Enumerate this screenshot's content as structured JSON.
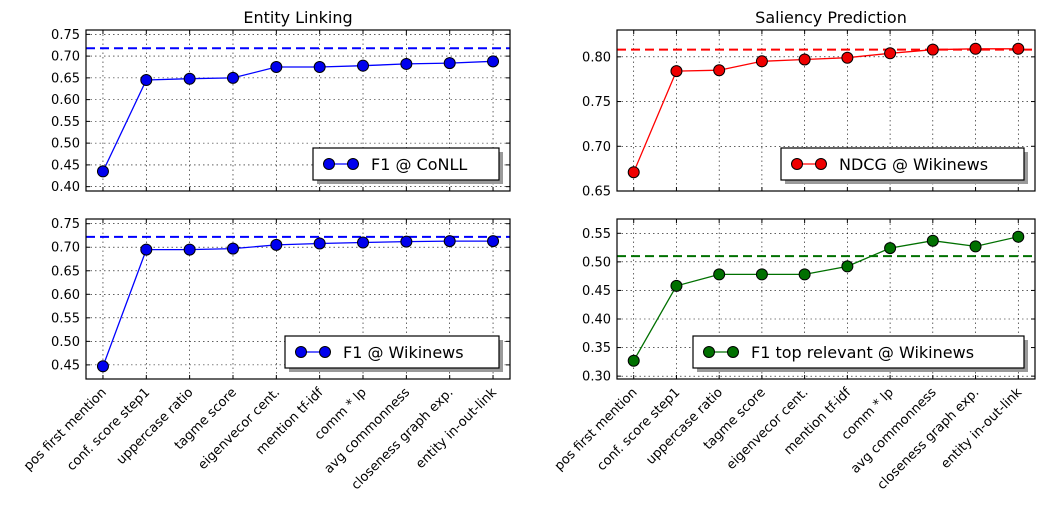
{
  "categories": [
    "pos first mention",
    "conf. score step1",
    "uppercase ratio",
    "tagme score",
    "eigenvecor cent.",
    "mention tf-idf",
    "comm * lp",
    "avg commonness",
    "closeness graph exp.",
    "entity in-out-link"
  ],
  "titles": {
    "left": "Entity Linking",
    "right": "Saliency Prediction"
  },
  "chart_data": [
    {
      "type": "line",
      "panel": "top-left",
      "title": "Entity Linking",
      "legend": "F1 @ CoNLL",
      "color": "#0000ff",
      "marker_color": "#0000ee",
      "values": [
        0.435,
        0.645,
        0.648,
        0.65,
        0.675,
        0.675,
        0.678,
        0.682,
        0.684,
        0.688
      ],
      "baseline": 0.718,
      "ylim": [
        0.39,
        0.76
      ],
      "yticks": [
        "0.40",
        "0.45",
        "0.50",
        "0.55",
        "0.60",
        "0.65",
        "0.70",
        "0.75"
      ],
      "grid": true,
      "legend_loc": "lower-right"
    },
    {
      "type": "line",
      "panel": "bottom-left",
      "legend": "F1 @ Wikinews",
      "color": "#0000ff",
      "marker_color": "#0000ee",
      "values": [
        0.447,
        0.695,
        0.695,
        0.697,
        0.705,
        0.708,
        0.71,
        0.712,
        0.713,
        0.713
      ],
      "baseline": 0.722,
      "ylim": [
        0.42,
        0.76
      ],
      "yticks": [
        "0.45",
        "0.50",
        "0.55",
        "0.60",
        "0.65",
        "0.70",
        "0.75"
      ],
      "grid": true,
      "legend_loc": "lower-right"
    },
    {
      "type": "line",
      "panel": "top-right",
      "title": "Saliency Prediction",
      "legend": "NDCG @ Wikinews",
      "color": "#ff0000",
      "marker_color": "#ee0000",
      "values": [
        0.671,
        0.784,
        0.785,
        0.795,
        0.797,
        0.799,
        0.804,
        0.808,
        0.809,
        0.809
      ],
      "baseline": 0.808,
      "ylim": [
        0.65,
        0.83
      ],
      "yticks": [
        "0.65",
        "0.70",
        "0.75",
        "0.80"
      ],
      "grid": true,
      "legend_loc": "lower-right"
    },
    {
      "type": "line",
      "panel": "bottom-right",
      "legend": "F1 top relevant @ Wikinews",
      "color": "#007000",
      "marker_color": "#007000",
      "values": [
        0.327,
        0.458,
        0.478,
        0.478,
        0.478,
        0.492,
        0.524,
        0.537,
        0.527,
        0.544
      ],
      "baseline": 0.51,
      "ylim": [
        0.295,
        0.575
      ],
      "yticks": [
        "0.30",
        "0.35",
        "0.40",
        "0.45",
        "0.50",
        "0.55"
      ],
      "grid": true,
      "legend_loc": "lower-right"
    }
  ]
}
